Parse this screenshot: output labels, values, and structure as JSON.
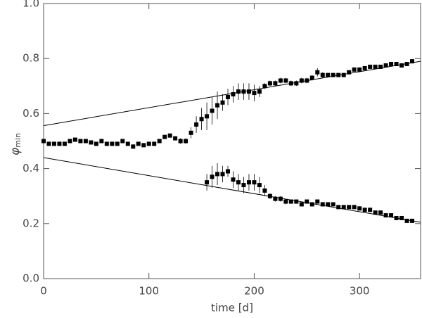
{
  "chart_data": {
    "type": "scatter",
    "xlabel": "time [d]",
    "ylabel": "φ",
    "ylabel_subscript": "min",
    "xlim": [
      0,
      358
    ],
    "ylim": [
      0,
      1
    ],
    "xticks": [
      0,
      100,
      200,
      300
    ],
    "yticks": [
      {
        "value": 0,
        "label": "0.0"
      },
      {
        "value": 0.2,
        "label": "0.2"
      },
      {
        "value": 0.4,
        "label": "0.4"
      },
      {
        "value": 0.6,
        "label": "0.6"
      },
      {
        "value": 0.8,
        "label": "0.8"
      },
      {
        "value": 1,
        "label": "1.0"
      }
    ],
    "series": [
      {
        "marker": "square",
        "color": "#000000",
        "x": [
          0,
          5,
          10,
          15,
          20,
          25,
          30,
          35,
          40,
          45,
          50,
          55,
          60,
          65,
          70,
          75,
          80,
          85,
          90,
          95,
          100,
          105,
          110,
          115,
          120,
          125,
          130,
          135,
          140,
          145,
          150,
          155,
          160,
          165,
          170,
          175,
          180,
          185,
          190,
          195,
          200,
          205,
          210,
          215,
          220,
          225,
          230,
          235,
          240,
          245,
          250,
          255,
          260,
          265,
          270,
          275,
          280,
          285,
          290,
          295,
          300,
          305,
          310,
          315,
          320,
          325,
          330,
          335,
          340,
          345,
          350
        ],
        "values": [
          0.5,
          0.49,
          0.49,
          0.49,
          0.49,
          0.5,
          0.505,
          0.5,
          0.5,
          0.495,
          0.49,
          0.5,
          0.49,
          0.49,
          0.49,
          0.5,
          0.49,
          0.48,
          0.49,
          0.485,
          0.49,
          0.49,
          0.5,
          0.515,
          0.52,
          0.51,
          0.5,
          0.5,
          0.53,
          0.56,
          0.58,
          0.59,
          0.61,
          0.63,
          0.64,
          0.66,
          0.67,
          0.68,
          0.68,
          0.68,
          0.675,
          0.68,
          0.7,
          0.71,
          0.71,
          0.72,
          0.72,
          0.71,
          0.71,
          0.72,
          0.72,
          0.73,
          0.75,
          0.74,
          0.74,
          0.74,
          0.74,
          0.74,
          0.75,
          0.76,
          0.76,
          0.765,
          0.77,
          0.77,
          0.77,
          0.775,
          0.78,
          0.78,
          0.775,
          0.78,
          0.79
        ],
        "errors": [
          0.005,
          0.005,
          0.005,
          0.005,
          0.005,
          0.005,
          0.005,
          0.005,
          0.005,
          0.005,
          0.005,
          0.005,
          0.005,
          0.005,
          0.005,
          0.005,
          0.005,
          0.005,
          0.005,
          0.005,
          0.005,
          0.005,
          0.005,
          0.005,
          0.005,
          0.005,
          0.01,
          0.01,
          0.02,
          0.03,
          0.04,
          0.05,
          0.05,
          0.05,
          0.03,
          0.03,
          0.03,
          0.03,
          0.03,
          0.03,
          0.03,
          0.02,
          0.01,
          0.01,
          0.01,
          0.01,
          0.01,
          0.01,
          0.01,
          0.01,
          0.01,
          0.01,
          0.015,
          0.01,
          0.005,
          0.005,
          0.005,
          0.005,
          0.005,
          0.005,
          0.005,
          0.005,
          0.005,
          0.005,
          0.005,
          0.005,
          0.005,
          0.005,
          0.005,
          0.005,
          0.005
        ]
      },
      {
        "marker": "square",
        "color": "#000000",
        "x": [
          155,
          160,
          165,
          170,
          175,
          180,
          185,
          190,
          195,
          200,
          205,
          210,
          215,
          220,
          225,
          230,
          235,
          240,
          245,
          250,
          255,
          260,
          265,
          270,
          275,
          280,
          285,
          290,
          295,
          300,
          305,
          310,
          315,
          320,
          325,
          330,
          335,
          340,
          345,
          350
        ],
        "values": [
          0.35,
          0.37,
          0.38,
          0.38,
          0.39,
          0.36,
          0.35,
          0.34,
          0.35,
          0.35,
          0.34,
          0.32,
          0.3,
          0.29,
          0.29,
          0.28,
          0.28,
          0.28,
          0.27,
          0.28,
          0.27,
          0.28,
          0.27,
          0.27,
          0.27,
          0.26,
          0.26,
          0.26,
          0.26,
          0.255,
          0.25,
          0.25,
          0.24,
          0.24,
          0.23,
          0.23,
          0.22,
          0.22,
          0.21,
          0.21
        ],
        "errors": [
          0.03,
          0.04,
          0.04,
          0.03,
          0.02,
          0.03,
          0.03,
          0.03,
          0.03,
          0.03,
          0.03,
          0.02,
          0.01,
          0.01,
          0.01,
          0.01,
          0.005,
          0.005,
          0.005,
          0.005,
          0.005,
          0.005,
          0.005,
          0.005,
          0.005,
          0.005,
          0.005,
          0.005,
          0.005,
          0.005,
          0.005,
          0.005,
          0.005,
          0.005,
          0.005,
          0.005,
          0.005,
          0.005,
          0.005,
          0.005
        ]
      },
      {
        "marker": "line",
        "color": "#000000",
        "x": [
          0,
          358
        ],
        "values": [
          0.556,
          0.79
        ]
      },
      {
        "marker": "line",
        "color": "#000000",
        "x": [
          0,
          358
        ],
        "values": [
          0.44,
          0.205
        ]
      }
    ]
  }
}
